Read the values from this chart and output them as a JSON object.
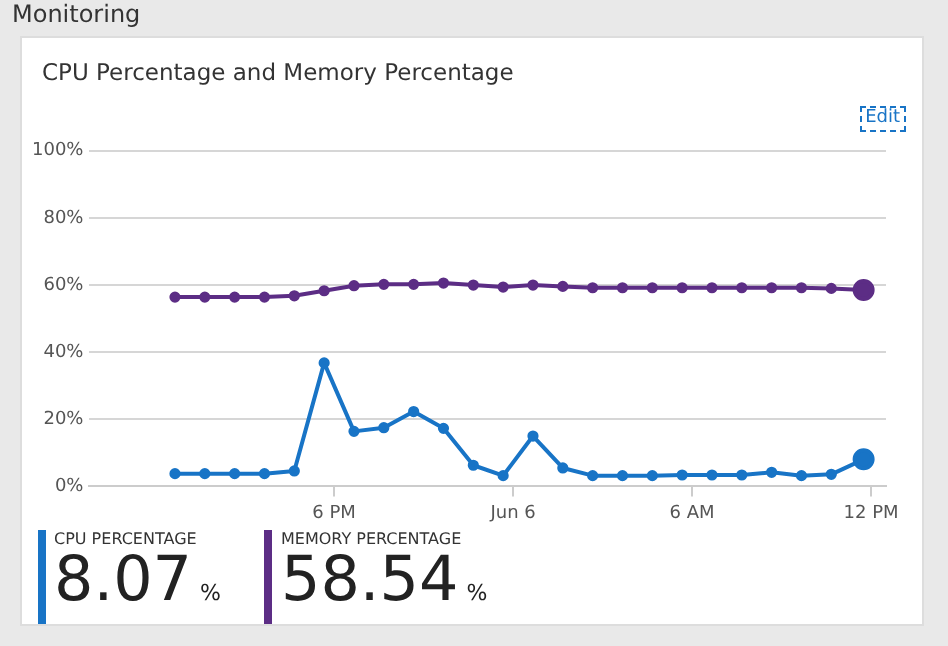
{
  "chart_data": {
    "type": "line",
    "title": "Monitoring",
    "subtitle": "CPU Percentage and Memory Percentage",
    "x": [
      "--06-05T12:40",
      "--06-05T13:40",
      "--06-05T14:40",
      "--06-05T15:40",
      "--06-05T16:40",
      "--06-05T17:40",
      "--06-05T18:40",
      "--06-05T19:40",
      "--06-05T20:40",
      "--06-05T21:40",
      "--06-05T22:40",
      "--06-05T23:40",
      "--06-06T00:40",
      "--06-06T01:40",
      "--06-06T02:40",
      "--06-06T03:40",
      "--06-06T04:40",
      "--06-06T05:40",
      "--06-06T06:40",
      "--06-06T07:40",
      "--06-06T08:40",
      "--06-06T09:40",
      "--06-06T10:40",
      "--06-06T11:45"
    ],
    "series": [
      {
        "name": "CPU PERCENTAGE",
        "color": "#1874c6",
        "values": [
          3.8,
          3.8,
          3.8,
          3.8,
          4.6,
          36.8,
          16.4,
          17.5,
          22.3,
          17.3,
          6.3,
          3.2,
          15,
          5.5,
          3.2,
          3.2,
          3.2,
          3.4,
          3.4,
          3.4,
          4.2,
          3.2,
          3.6,
          8.07
        ]
      },
      {
        "name": "MEMORY PERCENTAGE",
        "color": "#5c2d85",
        "values": [
          56.4,
          56.4,
          56.4,
          56.4,
          56.8,
          58.3,
          59.8,
          60.2,
          60.2,
          60.6,
          60,
          59.4,
          60,
          59.6,
          59.2,
          59.2,
          59.2,
          59.2,
          59.2,
          59.2,
          59.2,
          59.2,
          59,
          58.54
        ]
      }
    ],
    "xlim": [
      "--06-05T09:48",
      "--06-06T12:30"
    ],
    "xticks": [
      {
        "value": "--06-05T18:00",
        "label": "6 PM"
      },
      {
        "value": "--06-06T00:00",
        "label": "Jun 6"
      },
      {
        "value": "--06-06T06:00",
        "label": "6 AM"
      },
      {
        "value": "--06-06T12:00",
        "label": "12 PM"
      }
    ],
    "ylim": [
      0,
      100
    ],
    "yticks": [
      {
        "value": 0,
        "label": "0%"
      },
      {
        "value": 20,
        "label": "20%"
      },
      {
        "value": 40,
        "label": "40%"
      },
      {
        "value": 60,
        "label": "60%"
      },
      {
        "value": 80,
        "label": "80%"
      },
      {
        "value": 100,
        "label": "100%"
      }
    ],
    "grid": "y",
    "legend": "bottom",
    "marker": "circle",
    "line_style": "solid",
    "annotations": [
      "Edit",
      "8.07%",
      "58.54%"
    ]
  }
}
